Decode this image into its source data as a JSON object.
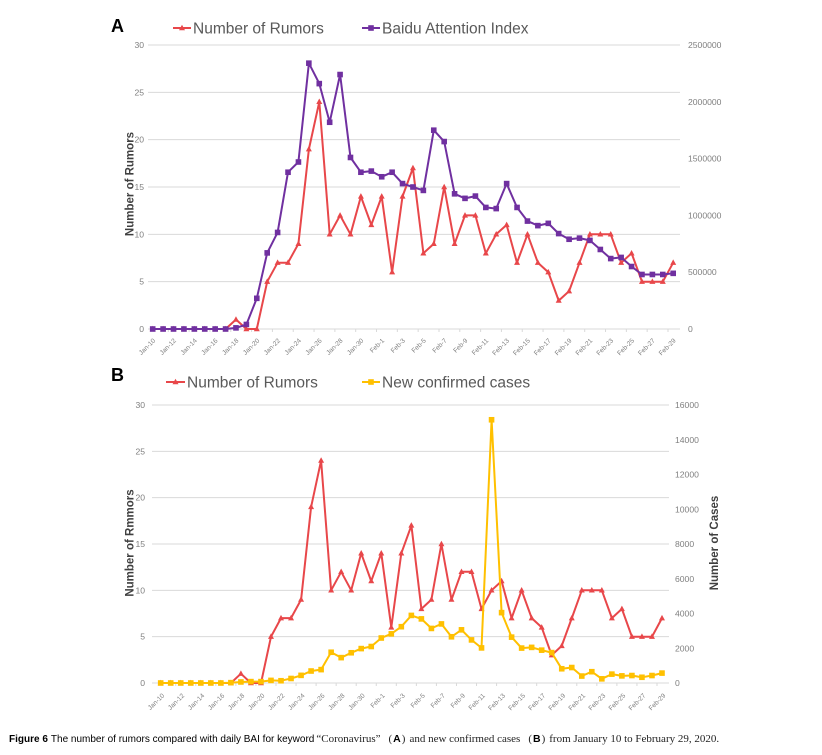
{
  "caption": {
    "label": "Figure 6",
    "text_before_keyword": "The number of rumors compared with daily BAI for keyword",
    "keyword": "“Coronavirus”",
    "paren_open": "(",
    "paren_close": ")",
    "panel_a": "A",
    "text_middle": "and new confirmed cases",
    "panel_b": "B",
    "text_after": "from January 10 to February 29, 2020."
  },
  "chart_data": [
    {
      "panel_label": "A",
      "type": "line",
      "title": "",
      "xlabel": "",
      "ylabel": "Number of Rumors",
      "ylabel_right": "",
      "ylim": [
        0,
        30
      ],
      "yticks": [
        0,
        5,
        10,
        15,
        20,
        25,
        30
      ],
      "ylim_right": [
        0,
        2500000
      ],
      "yticks_right": [
        0,
        500000,
        1000000,
        1500000,
        2000000,
        2500000
      ],
      "grid": true,
      "legend": "top",
      "x_tick_interval": 2,
      "categories": [
        "Jan-10",
        "Jan-11",
        "Jan-12",
        "Jan-13",
        "Jan-14",
        "Jan-15",
        "Jan-16",
        "Jan-17",
        "Jan-18",
        "Jan-19",
        "Jan-20",
        "Jan-21",
        "Jan-22",
        "Jan-23",
        "Jan-24",
        "Jan-25",
        "Jan-26",
        "Jan-27",
        "Jan-28",
        "Jan-29",
        "Jan-30",
        "Jan-31",
        "Feb-1",
        "Feb-2",
        "Feb-3",
        "Feb-4",
        "Feb-5",
        "Feb-6",
        "Feb-7",
        "Feb-8",
        "Feb-9",
        "Feb-10",
        "Feb-11",
        "Feb-12",
        "Feb-13",
        "Feb-14",
        "Feb-15",
        "Feb-16",
        "Feb-17",
        "Feb-18",
        "Feb-19",
        "Feb-20",
        "Feb-21",
        "Feb-22",
        "Feb-23",
        "Feb-24",
        "Feb-25",
        "Feb-26",
        "Feb-27",
        "Feb-28",
        "Feb-29"
      ],
      "series": [
        {
          "name": "Number of Rumors",
          "axis": "left",
          "marker": "triangle",
          "color": "#E8474A",
          "values": [
            0,
            0,
            0,
            0,
            0,
            0,
            0,
            0,
            1,
            0,
            0,
            5,
            7,
            7,
            9,
            19,
            24,
            10,
            12,
            10,
            14,
            11,
            14,
            6,
            14,
            17,
            8,
            9,
            15,
            9,
            12,
            12,
            8,
            10,
            11,
            7,
            10,
            7,
            6,
            3,
            4,
            7,
            10,
            10,
            10,
            7,
            8,
            5,
            5,
            5,
            7
          ]
        },
        {
          "name": "Baidu Attention Index",
          "axis": "right",
          "marker": "square",
          "color": "#7030A0",
          "values": [
            0,
            0,
            0,
            0,
            0,
            0,
            0,
            0,
            10000,
            40000,
            270000,
            670000,
            850000,
            1380000,
            1470000,
            2340000,
            2160000,
            1820000,
            2240000,
            1510000,
            1380000,
            1390000,
            1340000,
            1380000,
            1280000,
            1250000,
            1220000,
            1750000,
            1650000,
            1190000,
            1150000,
            1170000,
            1070000,
            1060000,
            1280000,
            1070000,
            950000,
            910000,
            930000,
            840000,
            790000,
            800000,
            780000,
            700000,
            620000,
            630000,
            550000,
            480000,
            480000,
            480000,
            490000
          ]
        }
      ]
    },
    {
      "panel_label": "B",
      "type": "line",
      "title": "",
      "xlabel": "",
      "ylabel": "Number of Rmmors",
      "ylabel_right": "Number of Cases",
      "ylim": [
        0,
        30
      ],
      "yticks": [
        0,
        5,
        10,
        15,
        20,
        25,
        30
      ],
      "ylim_right": [
        0,
        16000
      ],
      "yticks_right": [
        0,
        2000,
        4000,
        6000,
        8000,
        10000,
        12000,
        14000,
        16000
      ],
      "grid": true,
      "legend": "top",
      "x_tick_interval": 2,
      "categories": [
        "Jan-10",
        "Jan-11",
        "Jan-12",
        "Jan-13",
        "Jan-14",
        "Jan-15",
        "Jan-16",
        "Jan-17",
        "Jan-18",
        "Jan-19",
        "Jan-20",
        "Jan-21",
        "Jan-22",
        "Jan-23",
        "Jan-24",
        "Jan-25",
        "Jan-26",
        "Jan-27",
        "Jan-28",
        "Jan-29",
        "Jan-30",
        "Jan-31",
        "Feb-1",
        "Feb-2",
        "Feb-3",
        "Feb-4",
        "Feb-5",
        "Feb-6",
        "Feb-7",
        "Feb-8",
        "Feb-9",
        "Feb-10",
        "Feb-11",
        "Feb-12",
        "Feb-13",
        "Feb-14",
        "Feb-15",
        "Feb-16",
        "Feb-17",
        "Feb-18",
        "Feb-19",
        "Feb-20",
        "Feb-21",
        "Feb-22",
        "Feb-23",
        "Feb-24",
        "Feb-25",
        "Feb-26",
        "Feb-27",
        "Feb-28",
        "Feb-29"
      ],
      "series": [
        {
          "name": "Number of Rumors",
          "axis": "left",
          "marker": "triangle",
          "color": "#E8474A",
          "values": [
            0,
            0,
            0,
            0,
            0,
            0,
            0,
            0,
            1,
            0,
            0,
            5,
            7,
            7,
            9,
            19,
            24,
            10,
            12,
            10,
            14,
            11,
            14,
            6,
            14,
            17,
            8,
            9,
            15,
            9,
            12,
            12,
            8,
            10,
            11,
            7,
            10,
            7,
            6,
            3,
            4,
            7,
            10,
            10,
            10,
            7,
            8,
            5,
            5,
            5,
            7
          ]
        },
        {
          "name": "New confirmed cases",
          "axis": "right",
          "marker": "square",
          "color": "#FFC000",
          "values": [
            0,
            0,
            0,
            0,
            0,
            0,
            0,
            20,
            60,
            80,
            80,
            150,
            130,
            260,
            440,
            690,
            770,
            1770,
            1460,
            1740,
            1980,
            2100,
            2590,
            2830,
            3240,
            3890,
            3690,
            3140,
            3400,
            2660,
            3060,
            2480,
            2020,
            15150,
            4050,
            2640,
            2010,
            2050,
            1890,
            1750,
            820,
            890,
            400,
            650,
            240,
            510,
            410,
            430,
            330,
            430,
            570
          ]
        }
      ]
    }
  ]
}
